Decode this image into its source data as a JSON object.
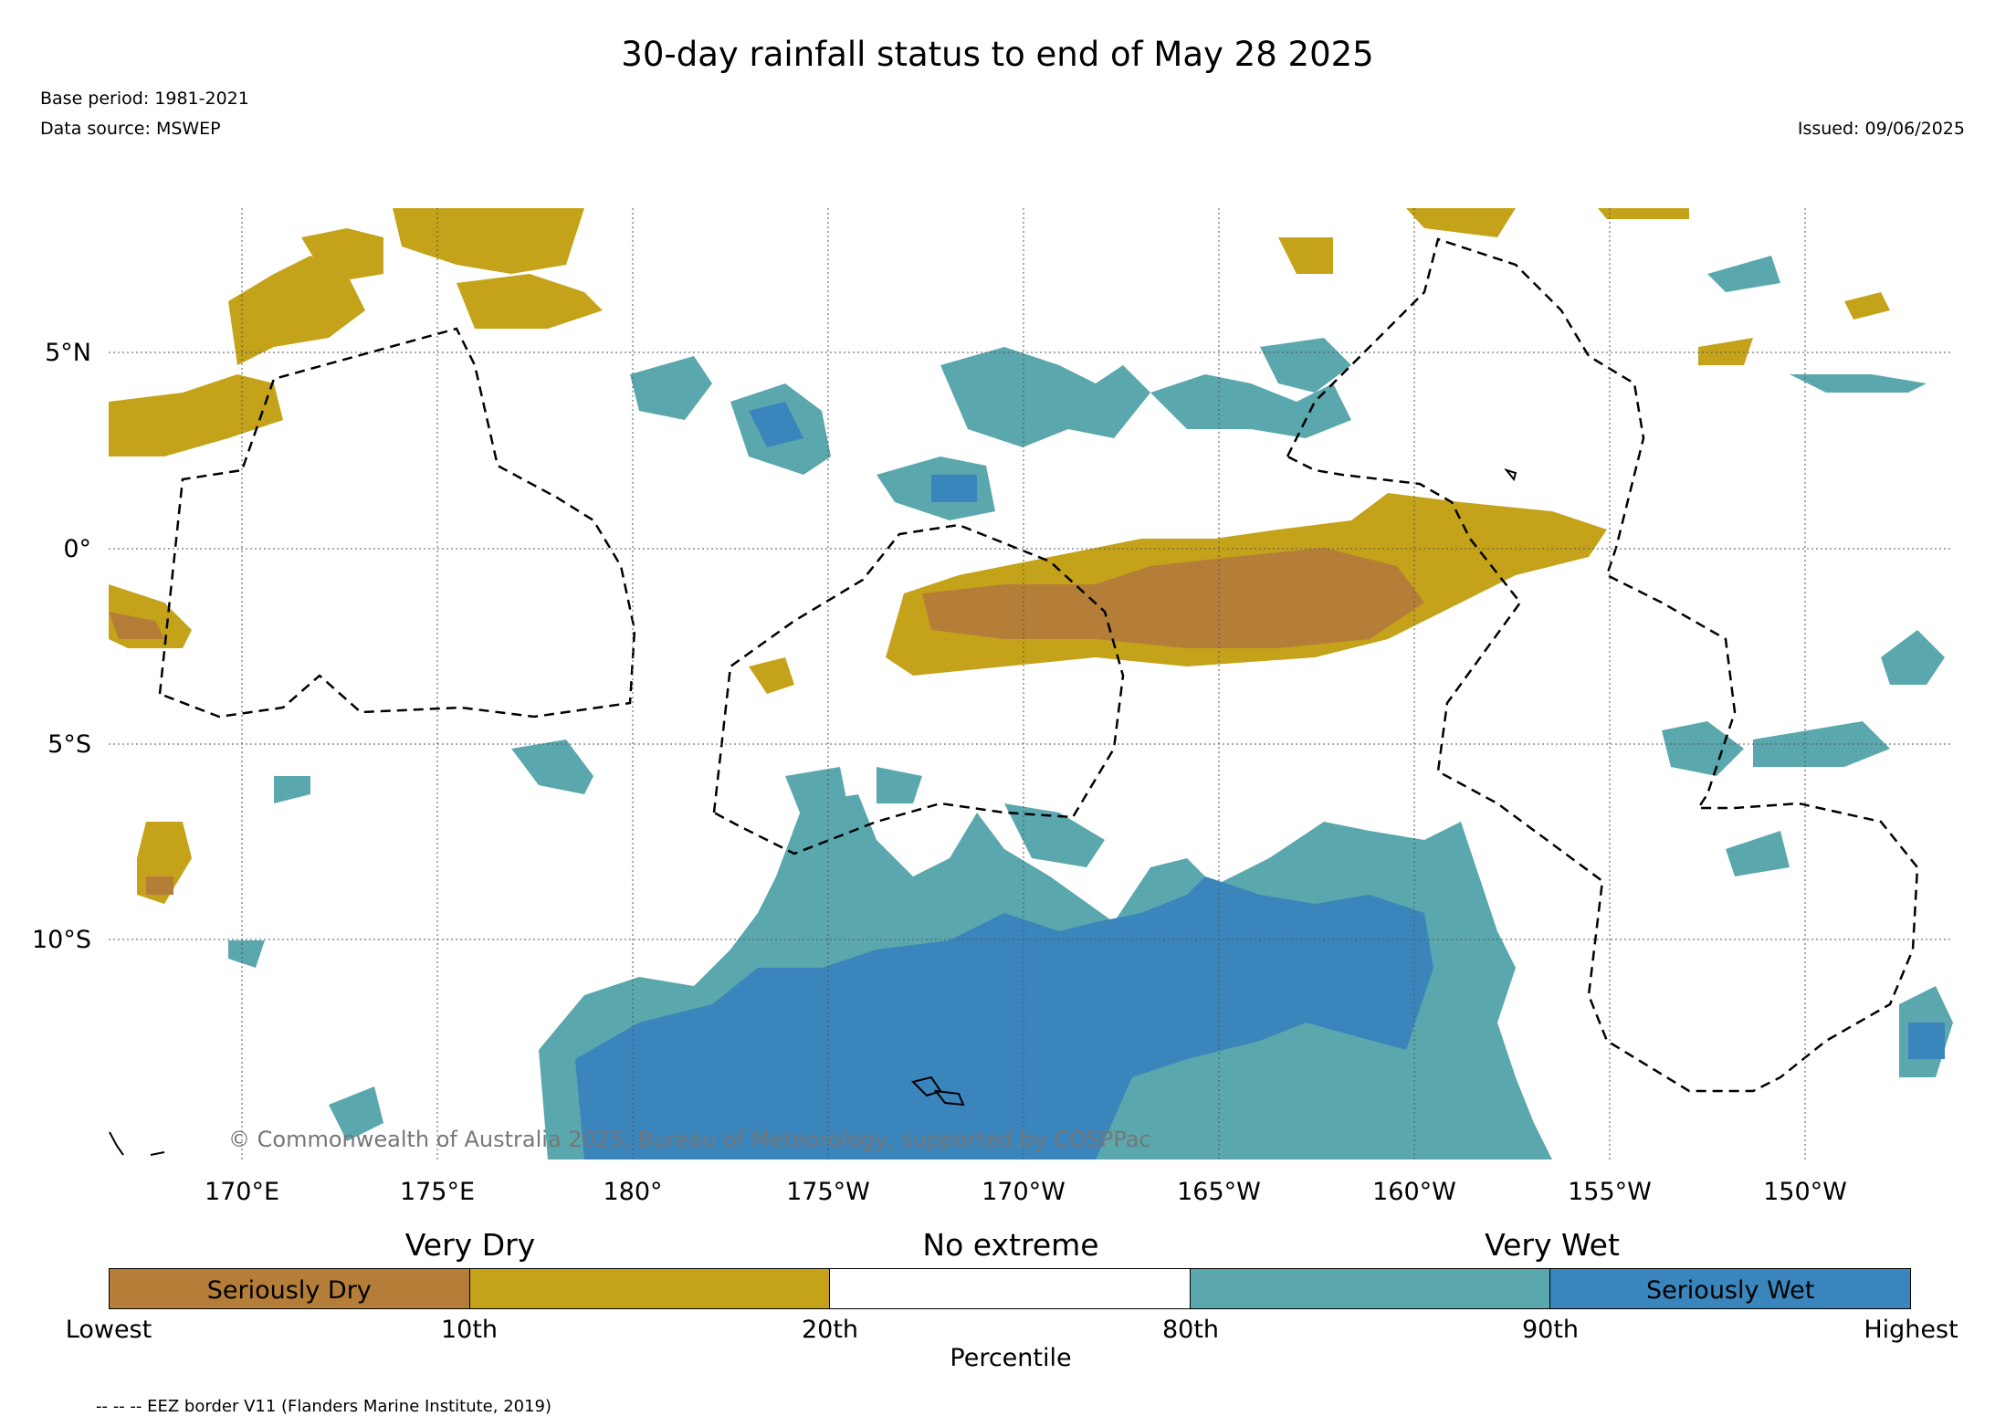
{
  "header": {
    "title": "30-day rainfall status to end of May 28 2025",
    "base_period": "Base period: 1981-2021",
    "data_source": "Data source: MSWEP",
    "issued": "Issued: 09/06/2025"
  },
  "map": {
    "copyright": "© Commonwealth of Australia 2025, Bureau of Meteorology, supported by COSPPac",
    "lat_labels": [
      "5°N",
      "0°",
      "5°S",
      "10°S"
    ],
    "lon_labels": [
      "170°E",
      "175°E",
      "180°",
      "175°W",
      "170°W",
      "165°W",
      "160°W",
      "155°W",
      "150°W"
    ],
    "colors": {
      "seriously_dry": "#b47e39",
      "very_dry": "#c4a31a",
      "very_wet": "#5aa7ad",
      "seriously_wet": "#3a85bb"
    }
  },
  "legend": {
    "category_labels": [
      "Very Dry",
      "No extreme",
      "Very Wet"
    ],
    "segments": [
      {
        "label": "Seriously Dry",
        "color": "#b47e39"
      },
      {
        "label": "",
        "color": "#c4a31a"
      },
      {
        "label": "",
        "color": "#ffffff"
      },
      {
        "label": "",
        "color": "#5aa7ad"
      },
      {
        "label": "Seriously Wet",
        "color": "#3a85bb"
      }
    ],
    "percentile_ticks": [
      "Lowest",
      "10th",
      "20th",
      "80th",
      "90th",
      "Highest"
    ],
    "axis_label": "Percentile"
  },
  "footnote": "-- -- -- EEZ border V11 (Flanders Marine Institute, 2019)"
}
